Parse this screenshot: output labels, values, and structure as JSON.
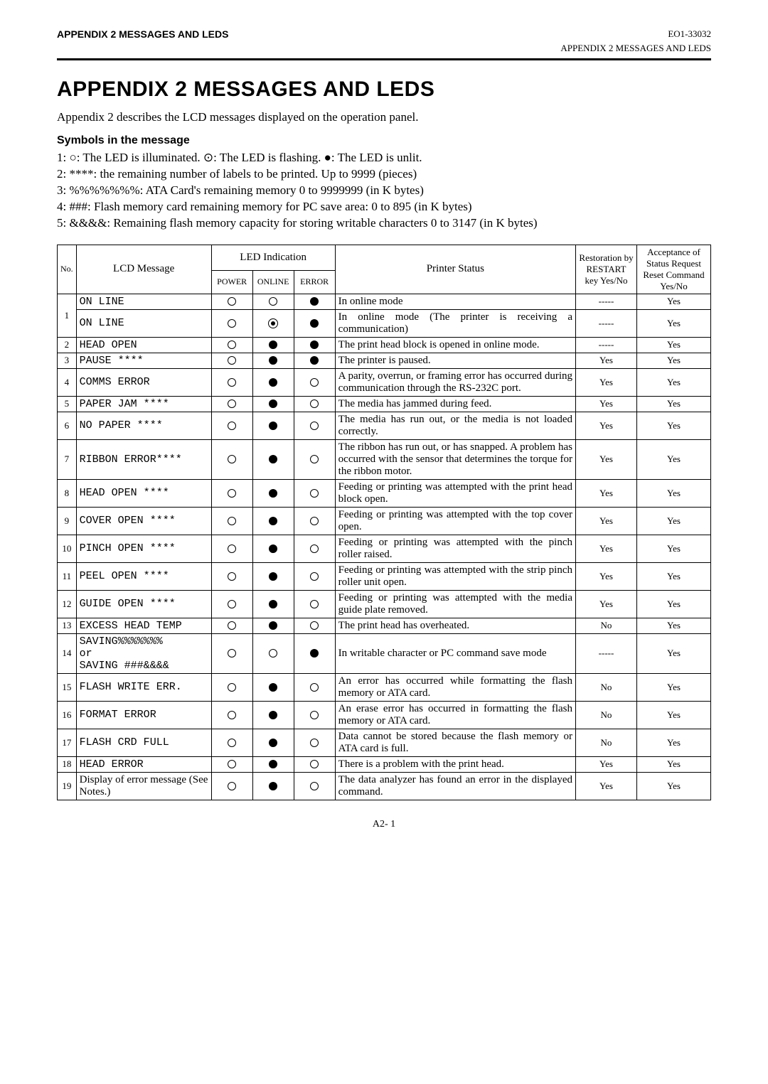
{
  "header": {
    "left": "APPENDIX 2  MESSAGES AND LEDS",
    "right": "EO1-33032",
    "sub": "APPENDIX 2 MESSAGES AND LEDS"
  },
  "title": "APPENDIX 2  MESSAGES AND LEDS",
  "intro": "Appendix 2 describes the LCD messages displayed on the operation panel.",
  "symbols_title": "Symbols in the message",
  "symbols": [
    "1: ○: The LED is illuminated.  ⊙: The LED is flashing.  ●: The LED is unlit.",
    "2: ****: the remaining number of labels to be printed.  Up to 9999 (pieces)",
    "3: %%%%%%%: ATA Card's remaining memory  0 to 9999999 (in K bytes)",
    "4: ###: Flash memory card remaining memory for PC save area: 0 to 895 (in K bytes)",
    "5: &&&&: Remaining flash memory capacity for storing writable characters  0 to 3147 (in K bytes)"
  ],
  "table": {
    "headers": {
      "no": "No.",
      "msg": "LCD Message",
      "led": "LED Indication",
      "power": "POWER",
      "online": "ONLINE",
      "error": "ERROR",
      "status": "Printer Status",
      "restore": "Restoration by RESTART key Yes/No",
      "accept": "Acceptance of Status Request Reset Command Yes/No"
    },
    "rows": [
      {
        "no": "1",
        "msg": "ON LINE",
        "p": "open",
        "o": "open",
        "e": "solid",
        "status": "In online mode",
        "r": "-----",
        "a": "Yes"
      },
      {
        "no": "",
        "msg": "ON LINE",
        "p": "open",
        "o": "dot",
        "e": "solid",
        "status": "In online mode (The printer is receiving a communication)",
        "r": "-----",
        "a": "Yes"
      },
      {
        "no": "2",
        "msg": "HEAD OPEN",
        "p": "open",
        "o": "solid",
        "e": "solid",
        "status": "The print head block is opened in online mode.",
        "r": "-----",
        "a": "Yes"
      },
      {
        "no": "3",
        "msg": "PAUSE    ****",
        "p": "open",
        "o": "solid",
        "e": "solid",
        "status": "The printer is paused.",
        "r": "Yes",
        "a": "Yes"
      },
      {
        "no": "4",
        "msg": "COMMS ERROR",
        "p": "open",
        "o": "solid",
        "e": "open",
        "status": "A parity, overrun, or framing error has occurred during communication through the RS-232C port.",
        "r": "Yes",
        "a": "Yes"
      },
      {
        "no": "5",
        "msg": "PAPER JAM   ****",
        "p": "open",
        "o": "solid",
        "e": "open",
        "status": "The media has jammed during feed.",
        "r": "Yes",
        "a": "Yes"
      },
      {
        "no": "6",
        "msg": "NO PAPER    ****",
        "p": "open",
        "o": "solid",
        "e": "open",
        "status": "The media has run out, or the media is not loaded correctly.",
        "r": "Yes",
        "a": "Yes"
      },
      {
        "no": "7",
        "msg": "RIBBON ERROR****",
        "p": "open",
        "o": "solid",
        "e": "open",
        "status": "The ribbon has run out, or has snapped. A problem has occurred with the sensor that determines the torque for the ribbon motor.",
        "r": "Yes",
        "a": "Yes"
      },
      {
        "no": "8",
        "msg": "HEAD OPEN   ****",
        "p": "open",
        "o": "solid",
        "e": "open",
        "status": "Feeding or printing was attempted with the print head block open.",
        "r": "Yes",
        "a": "Yes"
      },
      {
        "no": "9",
        "msg": "COVER OPEN  ****",
        "p": "open",
        "o": "solid",
        "e": "open",
        "status": "Feeding or printing was attempted with the top cover open.",
        "r": "Yes",
        "a": "Yes"
      },
      {
        "no": "10",
        "msg": "PINCH OPEN  ****",
        "p": "open",
        "o": "solid",
        "e": "open",
        "status": "Feeding or printing was attempted with the pinch roller raised.",
        "r": "Yes",
        "a": "Yes"
      },
      {
        "no": "11",
        "msg": "PEEL OPEN  ****",
        "p": "open",
        "o": "solid",
        "e": "open",
        "status": "Feeding or printing was attempted with the strip pinch roller unit open.",
        "r": "Yes",
        "a": "Yes"
      },
      {
        "no": "12",
        "msg": "GUIDE OPEN  ****",
        "p": "open",
        "o": "solid",
        "e": "open",
        "status": "Feeding or printing was attempted with the media guide plate removed.",
        "r": "Yes",
        "a": "Yes"
      },
      {
        "no": "13",
        "msg": "EXCESS HEAD TEMP",
        "p": "open",
        "o": "solid",
        "e": "open",
        "status": "The print head has overheated.",
        "r": "No",
        "a": "Yes"
      },
      {
        "no": "14",
        "msg": "SAVING%%%%%%%\nor\nSAVING ###&&&&",
        "p": "open",
        "o": "open",
        "e": "solid",
        "status": "In writable character or PC command save mode",
        "r": "-----",
        "a": "Yes"
      },
      {
        "no": "15",
        "msg": "FLASH WRITE ERR.",
        "p": "open",
        "o": "solid",
        "e": "open",
        "status": "An error has occurred while formatting the flash memory or ATA card.",
        "r": "No",
        "a": "Yes"
      },
      {
        "no": "16",
        "msg": "FORMAT ERROR",
        "p": "open",
        "o": "solid",
        "e": "open",
        "status": "An erase error has occurred in formatting the flash memory or ATA card.",
        "r": "No",
        "a": "Yes"
      },
      {
        "no": "17",
        "msg": "FLASH CRD FULL",
        "p": "open",
        "o": "solid",
        "e": "open",
        "status": "Data cannot be stored because the flash memory or ATA card is full.",
        "r": "No",
        "a": "Yes"
      },
      {
        "no": "18",
        "msg": "HEAD ERROR",
        "p": "open",
        "o": "solid",
        "e": "open",
        "status": "There is a problem with the print head.",
        "r": "Yes",
        "a": "Yes"
      },
      {
        "no": "19",
        "msg": "Display of error message (See Notes.)",
        "nonmono": true,
        "p": "open",
        "o": "solid",
        "e": "open",
        "status": "The data analyzer has found an error in the displayed command.",
        "r": "Yes",
        "a": "Yes"
      }
    ]
  },
  "footer": "A2- 1"
}
